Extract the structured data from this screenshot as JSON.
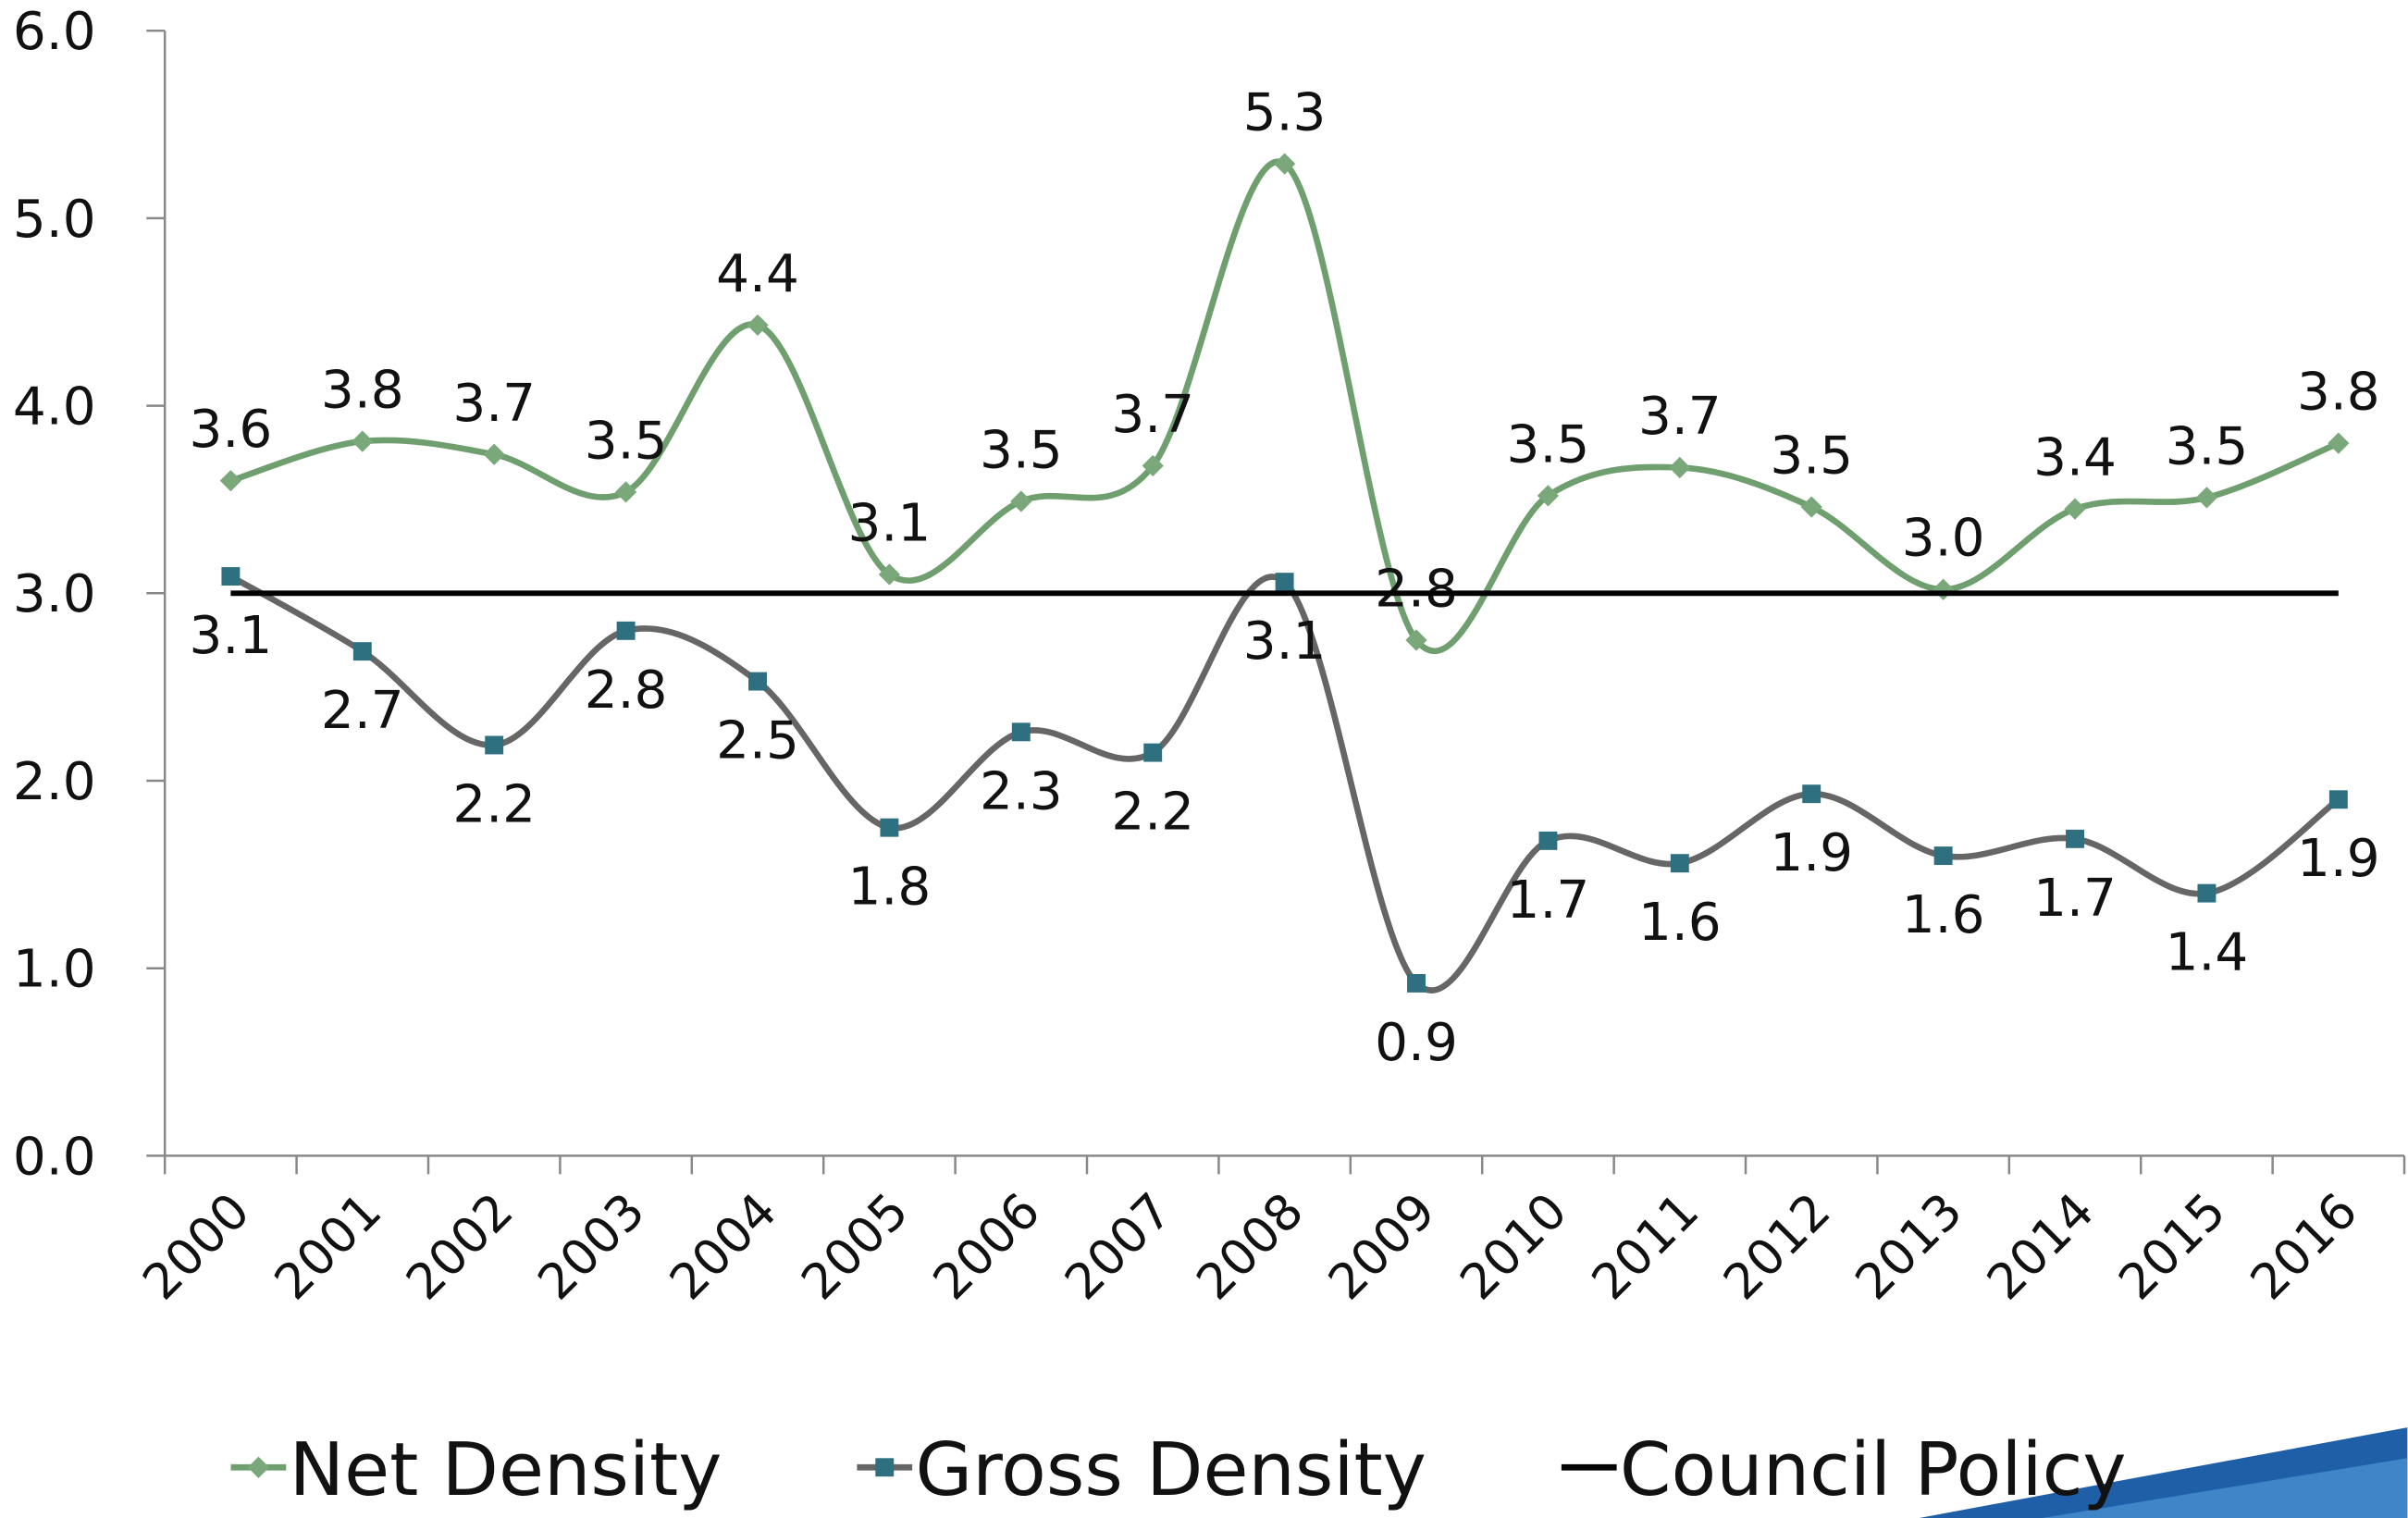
{
  "chart_data": {
    "type": "line",
    "categories": [
      "2000",
      "2001",
      "2002",
      "2003",
      "2004",
      "2005",
      "2006",
      "2007",
      "2008",
      "2009",
      "2010",
      "2011",
      "2012",
      "2013",
      "2014",
      "2015",
      "2016"
    ],
    "series": [
      {
        "name": "Net Density",
        "color": "#6f9e6f",
        "marker_color": "#7aa87a",
        "marker": "diamond",
        "smooth": true,
        "values": [
          3.6,
          3.81,
          3.74,
          3.54,
          4.43,
          3.1,
          3.49,
          3.68,
          5.29,
          2.75,
          3.52,
          3.67,
          3.46,
          3.02,
          3.45,
          3.51,
          3.8
        ],
        "value_labels": [
          "3.6",
          "3.8",
          "3.7",
          "3.5",
          "4.4",
          "3.1",
          "3.5",
          "3.7",
          "5.3",
          "2.8",
          "3.5",
          "3.7",
          "3.5",
          "3.0",
          "3.4",
          "3.5",
          "3.8"
        ],
        "label_position": "above"
      },
      {
        "name": "Gross Density",
        "color": "#666666",
        "marker_color": "#2f7080",
        "marker": "square",
        "smooth": true,
        "values": [
          3.09,
          2.69,
          2.19,
          2.8,
          2.53,
          1.75,
          2.26,
          2.15,
          3.06,
          0.92,
          1.68,
          1.56,
          1.93,
          1.6,
          1.69,
          1.4,
          1.9
        ],
        "value_labels": [
          "3.1",
          "2.7",
          "2.2",
          "2.8",
          "2.5",
          "1.8",
          "2.3",
          "2.2",
          "3.1",
          "0.9",
          "1.7",
          "1.6",
          "1.9",
          "1.6",
          "1.7",
          "1.4",
          "1.9"
        ],
        "label_position": "below"
      },
      {
        "name": "Council Policy",
        "color": "#000000",
        "marker": "none",
        "smooth": false,
        "values": [
          3.0,
          3.0,
          3.0,
          3.0,
          3.0,
          3.0,
          3.0,
          3.0,
          3.0,
          3.0,
          3.0,
          3.0,
          3.0,
          3.0,
          3.0,
          3.0,
          3.0
        ]
      }
    ],
    "ylim": [
      0,
      6
    ],
    "yticks": [
      {
        "value": 0,
        "label": "0.0"
      },
      {
        "value": 1,
        "label": "1.0"
      },
      {
        "value": 2,
        "label": "2.0"
      },
      {
        "value": 3,
        "label": "3.0"
      },
      {
        "value": 4,
        "label": "4.0"
      },
      {
        "value": 5,
        "label": "5.0"
      },
      {
        "value": 6,
        "label": "6.0"
      }
    ],
    "grid": false,
    "legend": "bottom"
  }
}
